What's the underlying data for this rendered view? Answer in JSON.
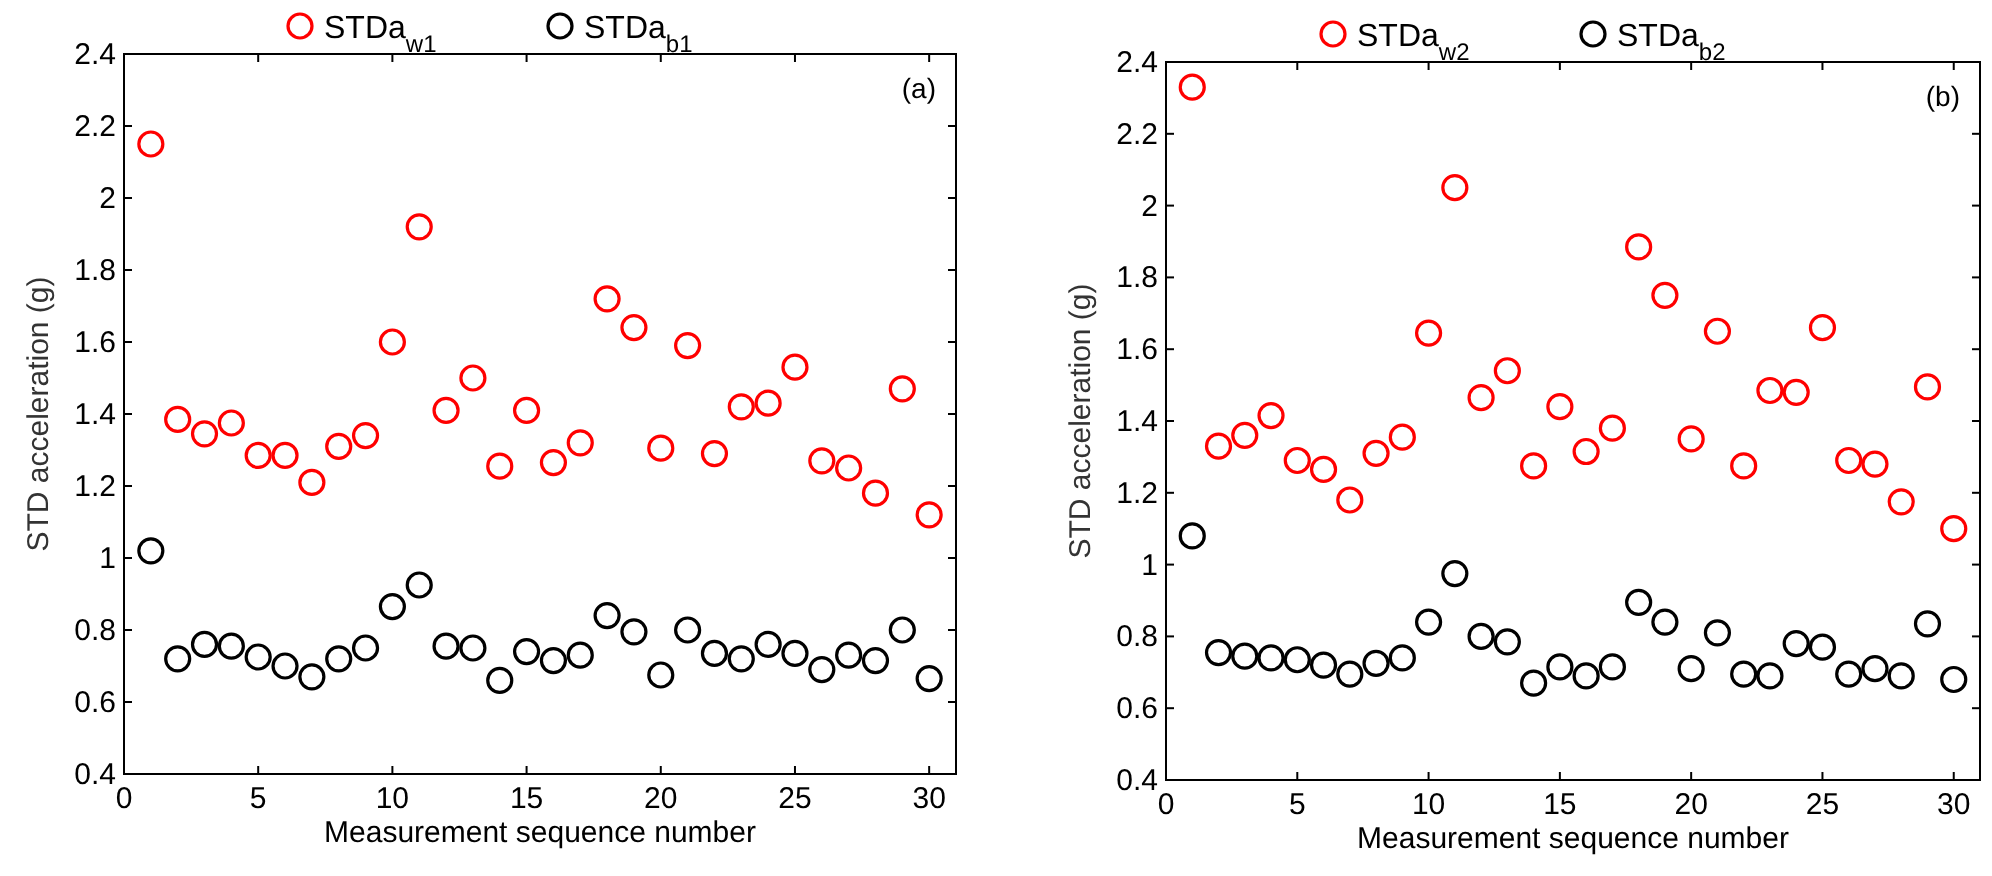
{
  "chart_data": [
    {
      "type": "scatter",
      "xlabel": "Measurement sequence number",
      "ylabel": "STD acceleration (g)",
      "annotations": [
        "(a)"
      ],
      "x": [
        1,
        2,
        3,
        4,
        5,
        6,
        7,
        8,
        9,
        10,
        11,
        12,
        13,
        14,
        15,
        16,
        17,
        18,
        19,
        20,
        21,
        22,
        23,
        24,
        25,
        26,
        27,
        28,
        29,
        30
      ],
      "xlim": [
        0,
        31
      ],
      "xticks": [
        0,
        5,
        10,
        15,
        20,
        25,
        30
      ],
      "ylim": [
        0.4,
        2.4
      ],
      "yticks": [
        0.4,
        0.6,
        0.8,
        1,
        1.2,
        1.4,
        1.6,
        1.8,
        2,
        2.2,
        2.4
      ],
      "marker": "circle",
      "legend": "top",
      "grid": false,
      "series": [
        {
          "name": "STDa$_{w1}$",
          "color": "#ff0000",
          "values": [
            2.15,
            1.385,
            1.345,
            1.375,
            1.285,
            1.285,
            1.21,
            1.31,
            1.34,
            1.6,
            1.92,
            1.41,
            1.5,
            1.255,
            1.41,
            1.265,
            1.32,
            1.72,
            1.64,
            1.305,
            1.59,
            1.29,
            1.42,
            1.43,
            1.53,
            1.27,
            1.25,
            1.18,
            1.47,
            1.12
          ]
        },
        {
          "name": "STDa$_{b1}$",
          "color": "#000000",
          "values": [
            1.02,
            0.72,
            0.76,
            0.755,
            0.725,
            0.7,
            0.67,
            0.72,
            0.75,
            0.865,
            0.925,
            0.755,
            0.75,
            0.66,
            0.74,
            0.715,
            0.73,
            0.84,
            0.795,
            0.675,
            0.8,
            0.735,
            0.72,
            0.76,
            0.735,
            0.69,
            0.73,
            0.715,
            0.8,
            0.665
          ]
        }
      ]
    },
    {
      "type": "scatter",
      "xlabel": "Measurement sequence number",
      "ylabel": "STD acceleration (g)",
      "annotations": [
        "(b)"
      ],
      "x": [
        1,
        2,
        3,
        4,
        5,
        6,
        7,
        8,
        9,
        10,
        11,
        12,
        13,
        14,
        15,
        16,
        17,
        18,
        19,
        20,
        21,
        22,
        23,
        24,
        25,
        26,
        27,
        28,
        29,
        30
      ],
      "xlim": [
        0,
        31
      ],
      "xticks": [
        0,
        5,
        10,
        15,
        20,
        25,
        30
      ],
      "ylim": [
        0.4,
        2.4
      ],
      "yticks": [
        0.4,
        0.6,
        0.8,
        1,
        1.2,
        1.4,
        1.6,
        1.8,
        2,
        2.2,
        2.4
      ],
      "marker": "circle",
      "legend": "top",
      "grid": false,
      "series": [
        {
          "name": "STDa$_{w2}$",
          "color": "#ff0000",
          "values": [
            2.33,
            1.33,
            1.36,
            1.415,
            1.29,
            1.265,
            1.18,
            1.31,
            1.355,
            1.645,
            2.05,
            1.465,
            1.54,
            1.275,
            1.44,
            1.315,
            1.38,
            1.885,
            1.75,
            1.35,
            1.65,
            1.275,
            1.485,
            1.48,
            1.66,
            1.29,
            1.28,
            1.175,
            1.495,
            1.1
          ]
        },
        {
          "name": "STDa$_{b2}$",
          "color": "#000000",
          "values": [
            1.08,
            0.755,
            0.745,
            0.74,
            0.735,
            0.72,
            0.695,
            0.725,
            0.74,
            0.84,
            0.975,
            0.8,
            0.785,
            0.67,
            0.715,
            0.69,
            0.715,
            0.895,
            0.84,
            0.71,
            0.81,
            0.695,
            0.69,
            0.78,
            0.77,
            0.695,
            0.71,
            0.69,
            0.835,
            0.68
          ]
        }
      ]
    }
  ]
}
